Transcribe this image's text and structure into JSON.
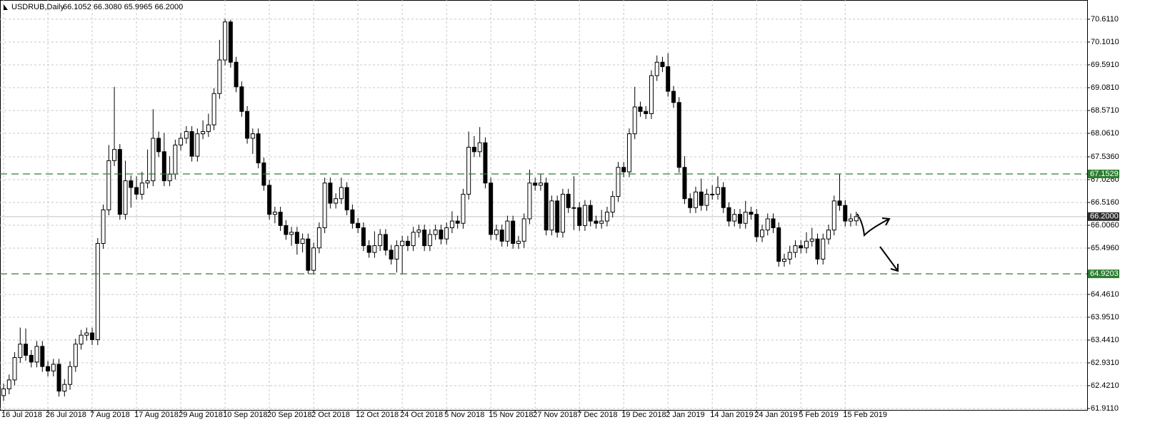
{
  "chart_data": {
    "type": "candlestick",
    "title": "USDRUB,Daily",
    "subtitle": "66.1052 66.3080 65.9965 66.2000",
    "grid": true,
    "up_color": "#ffffff",
    "down_color": "#000000",
    "outline_color": "#000000",
    "ylim": [
      61.88,
      71.04
    ],
    "xlim": [
      -0.65,
      195.7
    ],
    "yticks": [
      {
        "value": 70.611,
        "label": "70.6110"
      },
      {
        "value": 70.101,
        "label": "70.1010"
      },
      {
        "value": 69.591,
        "label": "69.5910"
      },
      {
        "value": 69.081,
        "label": "69.0810"
      },
      {
        "value": 68.571,
        "label": "68.5710"
      },
      {
        "value": 68.061,
        "label": "68.0610"
      },
      {
        "value": 67.536,
        "label": "67.5360"
      },
      {
        "value": 67.026,
        "label": "67.0260"
      },
      {
        "value": 66.516,
        "label": "66.5160"
      },
      {
        "value": 66.006,
        "label": "66.0060"
      },
      {
        "value": 65.496,
        "label": "65.4960"
      },
      {
        "value": 64.461,
        "label": "64.4610"
      },
      {
        "value": 63.951,
        "label": "63.9510"
      },
      {
        "value": 63.441,
        "label": "63.4410"
      },
      {
        "value": 62.931,
        "label": "62.9310"
      },
      {
        "value": 62.421,
        "label": "62.4210"
      },
      {
        "value": 61.911,
        "label": "61.9110"
      }
    ],
    "xticks": [
      {
        "value": 0,
        "label": "16 Jul 2018"
      },
      {
        "value": 8,
        "label": "26 Jul 2018"
      },
      {
        "value": 16,
        "label": "7 Aug 2018"
      },
      {
        "value": 24,
        "label": "17 Aug 2018"
      },
      {
        "value": 32,
        "label": "29 Aug 2018"
      },
      {
        "value": 40,
        "label": "10 Sep 2018"
      },
      {
        "value": 48,
        "label": "20 Sep 2018"
      },
      {
        "value": 56,
        "label": "2 Oct 2018"
      },
      {
        "value": 64,
        "label": "12 Oct 2018"
      },
      {
        "value": 72,
        "label": "24 Oct 2018"
      },
      {
        "value": 80,
        "label": "5 Nov 2018"
      },
      {
        "value": 88,
        "label": "15 Nov 2018"
      },
      {
        "value": 96,
        "label": "27 Nov 2018"
      },
      {
        "value": 104,
        "label": "7 Dec 2018"
      },
      {
        "value": 112,
        "label": "19 Dec 2018"
      },
      {
        "value": 120,
        "label": "2 Jan 2019"
      },
      {
        "value": 128,
        "label": "14 Jan 2019"
      },
      {
        "value": 136,
        "label": "24 Jan 2019"
      },
      {
        "value": 144,
        "label": "5 Feb 2019"
      },
      {
        "value": 152,
        "label": "15 Feb 2019"
      }
    ],
    "levels": [
      {
        "value": 67.1529,
        "label": "67.1529",
        "color": "#2e7d32"
      },
      {
        "value": 64.9203,
        "label": "64.9203",
        "color": "#2e7d32"
      }
    ],
    "price_line": {
      "value": 66.2,
      "label": "66.2000",
      "color": "#c0c0c0"
    },
    "open": [
      62.2,
      62.35,
      62.55,
      63.05,
      63.35,
      63.1,
      62.95,
      63.3,
      62.85,
      62.75,
      62.9,
      62.3,
      62.45,
      62.85,
      63.35,
      63.55,
      63.6,
      63.45,
      65.6,
      66.35,
      67.45,
      67.7,
      66.25,
      67.0,
      66.85,
      66.7,
      66.95,
      67.0,
      67.95,
      67.65,
      67.0,
      67.15,
      67.8,
      67.95,
      68.1,
      67.55,
      68.05,
      68.1,
      68.25,
      68.95,
      69.7,
      70.55,
      69.65,
      69.1,
      68.55,
      67.95,
      68.05,
      67.4,
      66.9,
      66.25,
      66.3,
      66.0,
      65.8,
      65.85,
      65.6,
      65.7,
      65.0,
      65.5,
      65.95,
      66.95,
      66.5,
      66.6,
      66.85,
      66.35,
      66.05,
      65.95,
      65.55,
      65.4,
      65.55,
      65.8,
      65.45,
      65.25,
      65.55,
      65.65,
      65.55,
      65.85,
      65.9,
      65.55,
      65.8,
      65.9,
      65.7,
      65.95,
      66.1,
      66.05,
      66.7,
      67.75,
      67.65,
      67.85,
      66.95,
      65.8,
      65.9,
      65.65,
      66.1,
      65.6,
      65.65,
      66.15,
      66.95,
      66.9,
      66.95,
      65.9,
      66.55,
      65.85,
      66.7,
      66.4,
      66.4,
      66.0,
      66.45,
      66.1,
      66.05,
      66.1,
      66.3,
      66.65,
      67.3,
      67.2,
      68.05,
      68.65,
      68.55,
      68.5,
      69.35,
      69.65,
      69.55,
      69.0,
      68.75,
      67.3,
      66.6,
      66.4,
      66.75,
      66.45,
      66.7,
      66.7,
      66.85,
      66.4,
      66.1,
      66.25,
      66.05,
      66.3,
      66.25,
      65.75,
      65.9,
      66.15,
      65.95,
      65.2,
      65.25,
      65.4,
      65.55,
      65.5,
      65.65,
      65.7,
      65.25,
      65.7,
      65.9,
      66.55,
      66.45,
      66.1,
      66.1052
    ],
    "high": [
      62.47,
      62.67,
      63.17,
      63.72,
      63.7,
      63.22,
      63.42,
      63.42,
      62.97,
      63.02,
      63.02,
      62.57,
      62.97,
      63.47,
      63.67,
      63.72,
      63.72,
      65.72,
      66.47,
      67.8,
      69.1,
      67.82,
      67.45,
      67.12,
      67.1,
      67.2,
      67.7,
      68.6,
      68.1,
      68.07,
      67.55,
      67.92,
      68.07,
      68.22,
      68.22,
      68.17,
      68.35,
      68.5,
      69.07,
      70.15,
      70.62,
      70.6,
      69.77,
      69.22,
      68.67,
      68.17,
      68.17,
      67.52,
      67.02,
      66.42,
      66.42,
      66.12,
      65.97,
      65.97,
      65.82,
      65.82,
      65.62,
      66.07,
      67.07,
      67.07,
      66.72,
      67.07,
      66.97,
      66.47,
      66.17,
      66.07,
      65.67,
      65.87,
      65.92,
      65.92,
      65.57,
      65.67,
      65.77,
      65.77,
      65.97,
      66.02,
      66.02,
      65.92,
      66.02,
      66.02,
      66.07,
      66.32,
      66.22,
      66.82,
      68.1,
      68.0,
      68.2,
      67.97,
      67.07,
      66.02,
      66.02,
      66.22,
      66.22,
      65.77,
      66.27,
      67.25,
      67.07,
      67.15,
      67.07,
      66.67,
      66.67,
      66.82,
      66.82,
      67.1,
      66.52,
      66.57,
      66.57,
      66.22,
      66.35,
      66.42,
      66.77,
      67.42,
      67.42,
      68.17,
      69.1,
      68.77,
      68.67,
      69.47,
      69.8,
      69.77,
      69.85,
      69.12,
      68.87,
      67.55,
      66.72,
      66.87,
      67.05,
      66.82,
      66.9,
      67.1,
      66.97,
      66.52,
      66.37,
      66.37,
      66.55,
      66.42,
      66.37,
      66.02,
      66.27,
      66.27,
      66.07,
      65.37,
      65.55,
      65.67,
      65.67,
      65.85,
      65.95,
      65.82,
      65.82,
      66.02,
      66.67,
      67.15,
      66.57,
      66.27,
      66.308
    ],
    "low": [
      62.08,
      62.23,
      62.43,
      62.93,
      62.98,
      62.83,
      62.83,
      62.73,
      62.63,
      62.63,
      62.18,
      62.18,
      62.33,
      62.73,
      63.23,
      63.43,
      63.33,
      63.33,
      65.48,
      66.23,
      67.33,
      66.13,
      66.13,
      66.4,
      66.58,
      66.58,
      66.83,
      66.88,
      67.53,
      66.88,
      66.88,
      67.03,
      67.68,
      67.83,
      67.43,
      67.43,
      67.93,
      67.98,
      68.13,
      68.83,
      69.58,
      69.53,
      68.98,
      68.43,
      67.83,
      67.6,
      67.28,
      66.78,
      66.13,
      66.05,
      65.88,
      65.68,
      65.55,
      65.35,
      65.4,
      64.92,
      64.93,
      65.38,
      65.83,
      66.38,
      66.38,
      66.48,
      66.23,
      65.93,
      65.83,
      65.43,
      65.28,
      65.28,
      65.43,
      65.33,
      65.13,
      64.95,
      64.92,
      65.43,
      65.43,
      65.73,
      65.43,
      65.43,
      65.68,
      65.58,
      65.58,
      65.83,
      65.93,
      65.93,
      66.58,
      67.53,
      67.53,
      66.83,
      65.68,
      65.68,
      65.53,
      65.53,
      65.48,
      65.48,
      65.5,
      66.03,
      66.78,
      66.78,
      65.78,
      65.78,
      65.73,
      65.73,
      66.28,
      65.9,
      65.88,
      65.88,
      65.98,
      65.93,
      65.93,
      65.98,
      66.18,
      66.53,
      67.08,
      67.08,
      67.93,
      68.43,
      68.38,
      68.38,
      69.23,
      69.43,
      68.88,
      68.63,
      67.18,
      66.48,
      66.28,
      66.28,
      66.33,
      66.33,
      66.58,
      66.58,
      66.28,
      65.98,
      65.98,
      65.93,
      65.93,
      66.13,
      65.63,
      65.63,
      65.78,
      65.83,
      65.08,
      65.08,
      65.13,
      65.28,
      65.38,
      65.38,
      65.53,
      65.13,
      65.13,
      65.58,
      65.78,
      66.33,
      65.98,
      65.98,
      65.9965
    ],
    "close": [
      62.35,
      62.55,
      63.05,
      63.35,
      63.1,
      62.95,
      63.3,
      62.85,
      62.75,
      62.9,
      62.3,
      62.45,
      62.85,
      63.35,
      63.55,
      63.6,
      63.45,
      65.6,
      66.35,
      67.45,
      67.7,
      66.25,
      67.0,
      66.85,
      66.7,
      66.95,
      67.0,
      67.95,
      67.65,
      67.0,
      67.15,
      67.8,
      67.95,
      68.1,
      67.55,
      68.05,
      68.1,
      68.25,
      68.95,
      69.7,
      70.55,
      69.65,
      69.1,
      68.55,
      67.95,
      68.05,
      67.4,
      66.9,
      66.25,
      66.3,
      66.0,
      65.8,
      65.85,
      65.6,
      65.7,
      65.0,
      65.5,
      65.95,
      66.95,
      66.5,
      66.6,
      66.85,
      66.35,
      66.05,
      65.95,
      65.55,
      65.4,
      65.55,
      65.8,
      65.45,
      65.25,
      65.55,
      65.65,
      65.55,
      65.85,
      65.9,
      65.55,
      65.8,
      65.9,
      65.7,
      65.95,
      66.1,
      66.05,
      66.7,
      67.75,
      67.65,
      67.85,
      66.95,
      65.8,
      65.9,
      65.65,
      66.1,
      65.6,
      65.65,
      66.15,
      66.95,
      66.9,
      66.95,
      65.9,
      66.55,
      65.85,
      66.7,
      66.4,
      66.4,
      66.0,
      66.45,
      66.1,
      66.05,
      66.1,
      66.3,
      66.65,
      67.3,
      67.2,
      68.05,
      68.65,
      68.55,
      68.5,
      69.35,
      69.65,
      69.55,
      69.0,
      68.75,
      67.3,
      66.6,
      66.4,
      66.75,
      66.45,
      66.7,
      66.7,
      66.85,
      66.4,
      66.1,
      66.25,
      66.05,
      66.3,
      66.25,
      65.75,
      65.9,
      66.15,
      65.95,
      65.2,
      65.25,
      65.4,
      65.55,
      65.5,
      65.65,
      65.7,
      65.25,
      65.7,
      65.9,
      66.55,
      66.45,
      66.1,
      66.15,
      66.2
    ]
  }
}
